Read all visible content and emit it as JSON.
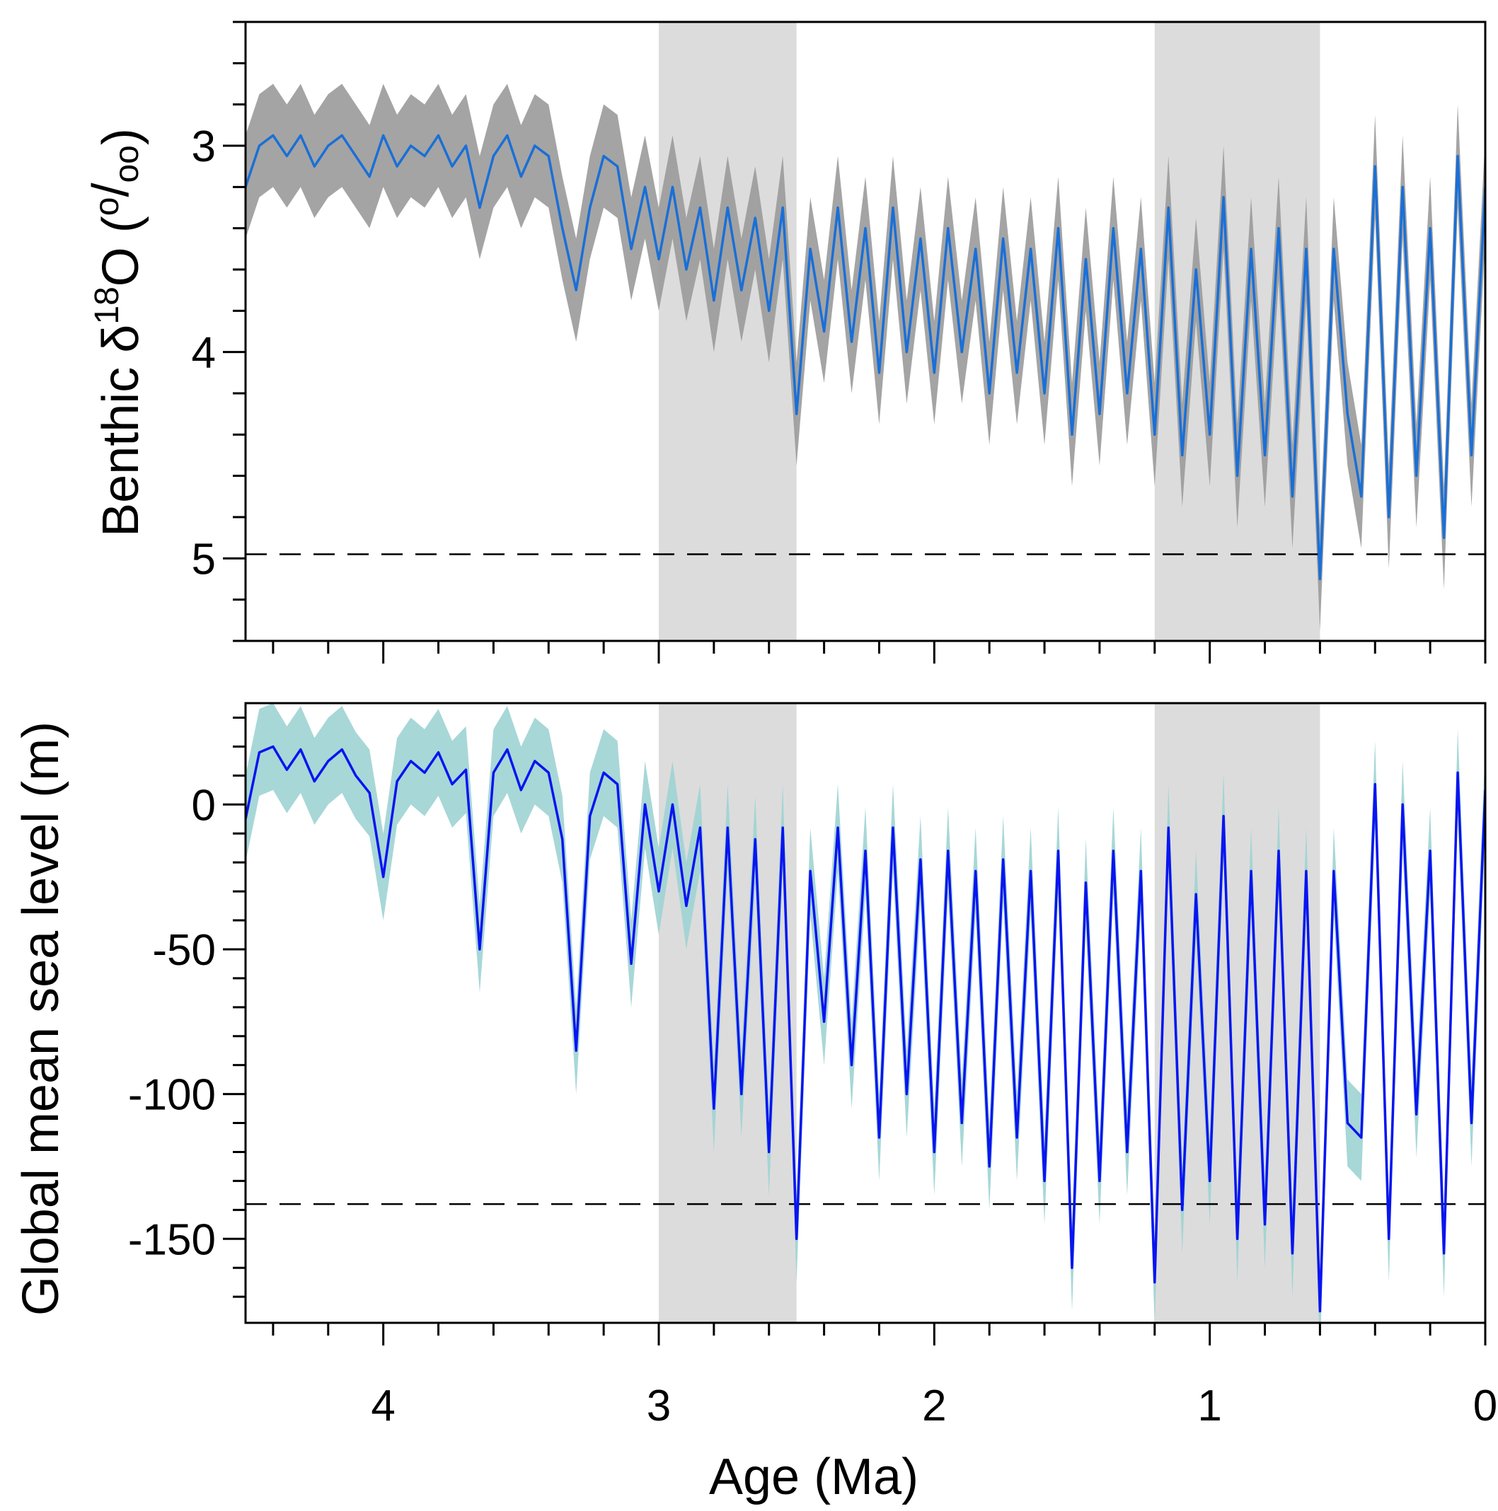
{
  "chart_data": [
    {
      "type": "line",
      "panel": "top",
      "ylabel_parts": [
        "Benthic δ",
        "18",
        "O (",
        "o",
        "/",
        "oo",
        ")"
      ],
      "xlim": [
        4.5,
        0
      ],
      "ylim": [
        5.4,
        2.4
      ],
      "y_inverted": true,
      "yticks": [
        3,
        4,
        5
      ],
      "ytick_labels": [
        "3",
        "4",
        "5"
      ],
      "reference_line": 4.98,
      "shaded_intervals": [
        [
          3.0,
          2.5
        ],
        [
          1.2,
          0.6
        ]
      ],
      "line_color": "#1a6fd6",
      "band_color": "#9a9a9a",
      "band_halfwidth": 0.25,
      "x": [
        4.5,
        4.45,
        4.4,
        4.35,
        4.3,
        4.25,
        4.2,
        4.15,
        4.1,
        4.05,
        4.0,
        3.95,
        3.9,
        3.85,
        3.8,
        3.75,
        3.7,
        3.65,
        3.6,
        3.55,
        3.5,
        3.45,
        3.4,
        3.35,
        3.3,
        3.25,
        3.2,
        3.15,
        3.1,
        3.05,
        3.0,
        2.95,
        2.9,
        2.85,
        2.8,
        2.75,
        2.7,
        2.65,
        2.6,
        2.55,
        2.5,
        2.45,
        2.4,
        2.35,
        2.3,
        2.25,
        2.2,
        2.15,
        2.1,
        2.05,
        2.0,
        1.95,
        1.9,
        1.85,
        1.8,
        1.75,
        1.7,
        1.65,
        1.6,
        1.55,
        1.5,
        1.45,
        1.4,
        1.35,
        1.3,
        1.25,
        1.2,
        1.15,
        1.1,
        1.05,
        1.0,
        0.95,
        0.9,
        0.85,
        0.8,
        0.75,
        0.7,
        0.65,
        0.6,
        0.55,
        0.5,
        0.45,
        0.4,
        0.35,
        0.3,
        0.25,
        0.2,
        0.15,
        0.1,
        0.05,
        0.0
      ],
      "values": [
        3.2,
        3.0,
        2.95,
        3.05,
        2.95,
        3.1,
        3.0,
        2.95,
        3.05,
        3.15,
        2.95,
        3.1,
        3.0,
        3.05,
        2.95,
        3.1,
        3.0,
        3.3,
        3.05,
        2.95,
        3.15,
        3.0,
        3.05,
        3.4,
        3.7,
        3.3,
        3.05,
        3.1,
        3.5,
        3.2,
        3.55,
        3.2,
        3.6,
        3.3,
        3.75,
        3.3,
        3.7,
        3.35,
        3.8,
        3.3,
        4.3,
        3.5,
        3.9,
        3.3,
        3.95,
        3.4,
        4.1,
        3.3,
        4.0,
        3.45,
        4.1,
        3.4,
        4.0,
        3.5,
        4.2,
        3.45,
        4.1,
        3.5,
        4.2,
        3.4,
        4.4,
        3.55,
        4.3,
        3.4,
        4.2,
        3.5,
        4.4,
        3.3,
        4.5,
        3.6,
        4.4,
        3.25,
        4.6,
        3.5,
        4.5,
        3.4,
        4.7,
        3.5,
        5.1,
        3.5,
        4.3,
        4.7,
        3.1,
        4.8,
        3.2,
        4.6,
        3.4,
        4.9,
        3.05,
        4.5,
        3.2
      ]
    },
    {
      "type": "line",
      "panel": "bottom",
      "ylabel": "Global mean sea level (m)",
      "xlabel": "Age (Ma)",
      "xlim": [
        4.5,
        0
      ],
      "ylim": [
        -179,
        35
      ],
      "xticks": [
        4,
        3,
        2,
        1,
        0
      ],
      "xtick_labels": [
        "4",
        "3",
        "2",
        "1",
        "0"
      ],
      "yticks": [
        0,
        -50,
        -100,
        -150
      ],
      "ytick_labels": [
        "0",
        "-50",
        "-100",
        "-150"
      ],
      "reference_line": -138,
      "shaded_intervals": [
        [
          3.0,
          2.5
        ],
        [
          1.2,
          0.6
        ]
      ],
      "line_color": "#0a14f0",
      "band_color": "#9fd3d3",
      "band_halfwidth": 15,
      "x": [
        4.5,
        4.45,
        4.4,
        4.35,
        4.3,
        4.25,
        4.2,
        4.15,
        4.1,
        4.05,
        4.0,
        3.95,
        3.9,
        3.85,
        3.8,
        3.75,
        3.7,
        3.65,
        3.6,
        3.55,
        3.5,
        3.45,
        3.4,
        3.35,
        3.3,
        3.25,
        3.2,
        3.15,
        3.1,
        3.05,
        3.0,
        2.95,
        2.9,
        2.85,
        2.8,
        2.75,
        2.7,
        2.65,
        2.6,
        2.55,
        2.5,
        2.45,
        2.4,
        2.35,
        2.3,
        2.25,
        2.2,
        2.15,
        2.1,
        2.05,
        2.0,
        1.95,
        1.9,
        1.85,
        1.8,
        1.75,
        1.7,
        1.65,
        1.6,
        1.55,
        1.5,
        1.45,
        1.4,
        1.35,
        1.3,
        1.25,
        1.2,
        1.15,
        1.1,
        1.05,
        1.0,
        0.95,
        0.9,
        0.85,
        0.8,
        0.75,
        0.7,
        0.65,
        0.6,
        0.55,
        0.5,
        0.45,
        0.4,
        0.35,
        0.3,
        0.25,
        0.2,
        0.15,
        0.1,
        0.05,
        0.0
      ],
      "values": [
        -5,
        18,
        20,
        12,
        19,
        8,
        15,
        19,
        10,
        4,
        -25,
        8,
        15,
        11,
        18,
        7,
        12,
        -50,
        11,
        19,
        5,
        15,
        11,
        -12,
        -85,
        -4,
        11,
        7,
        -55,
        0,
        -30,
        0,
        -35,
        -8,
        -105,
        -8,
        -100,
        -12,
        -120,
        -8,
        -150,
        -23,
        -75,
        -8,
        -90,
        -16,
        -115,
        -8,
        -100,
        -19,
        -120,
        -16,
        -110,
        -23,
        -125,
        -19,
        -115,
        -23,
        -130,
        -16,
        -160,
        -27,
        -130,
        -16,
        -120,
        -23,
        -165,
        -8,
        -140,
        -31,
        -130,
        -4,
        -150,
        -23,
        -145,
        -16,
        -155,
        -23,
        -175,
        -23,
        -110,
        -115,
        7,
        -150,
        0,
        -107,
        -16,
        -155,
        11,
        -110,
        5
      ]
    }
  ]
}
